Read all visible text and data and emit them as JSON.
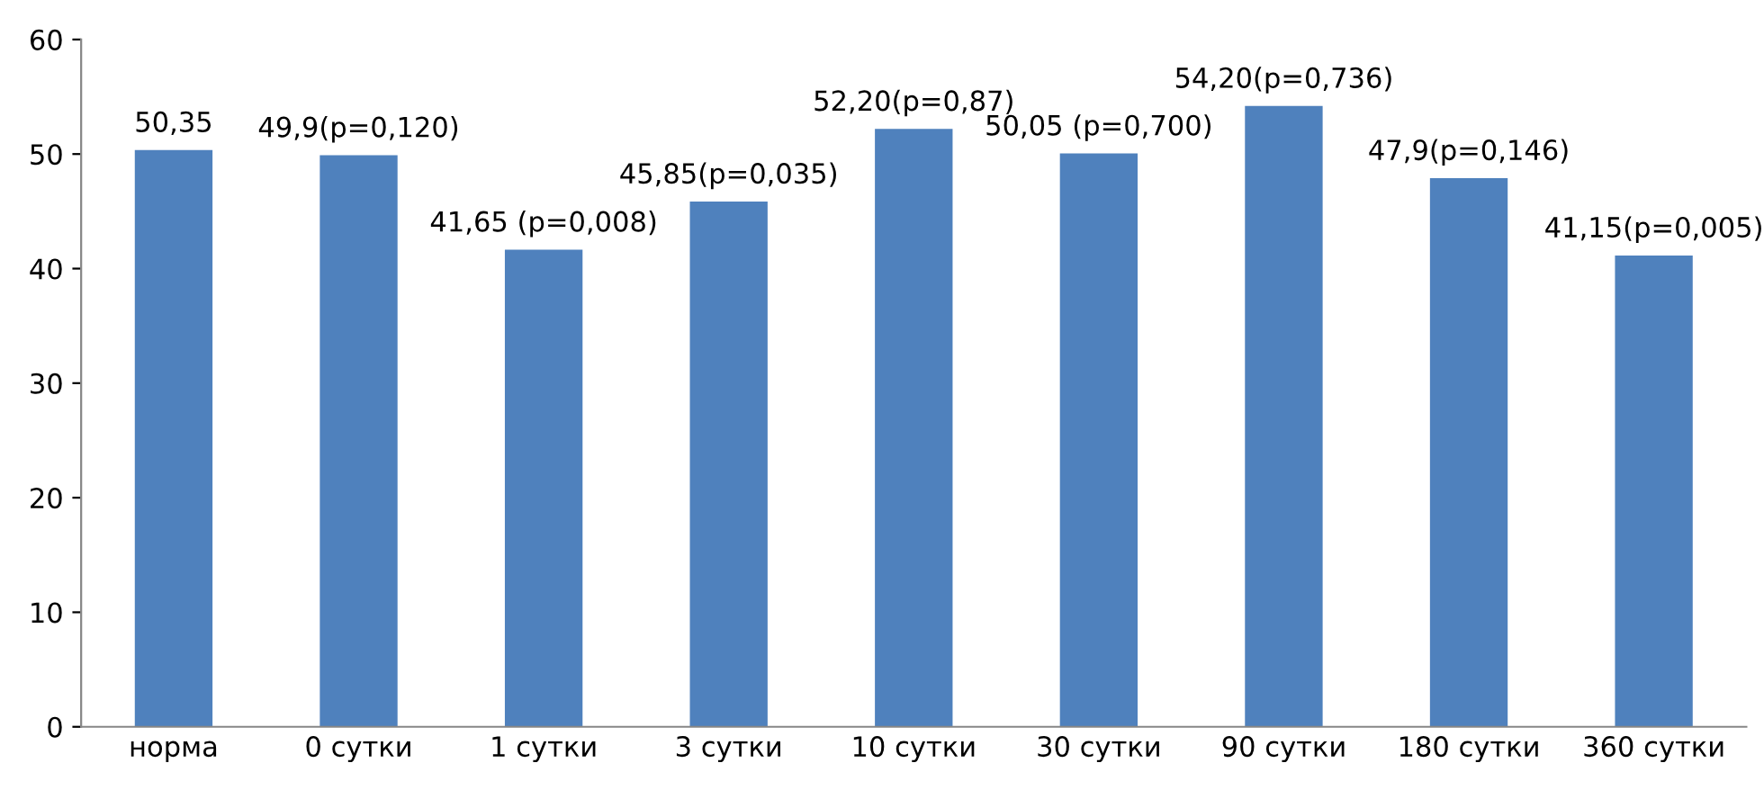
{
  "chart_data": {
    "type": "bar",
    "categories": [
      "норма",
      "0 сутки",
      "1 сутки",
      "3 сутки",
      "10 сутки",
      "30 сутки",
      "90 сутки",
      "180 сутки",
      "360 сутки"
    ],
    "values": [
      50.35,
      49.9,
      41.65,
      45.85,
      52.2,
      50.05,
      54.2,
      47.9,
      41.15
    ],
    "value_labels": [
      "50,35",
      "49,9(p=0,120)",
      "41,65 (p=0,008)",
      "45,85(p=0,035)",
      "52,20(p=0,87)",
      "50,05 (p=0,700)",
      "54,20(p=0,736)",
      "47,9(p=0,146)",
      "41,15(p=0,005)"
    ],
    "color": "#4f81bd",
    "ylim": [
      0,
      60
    ],
    "yticks": [
      0,
      10,
      20,
      30,
      40,
      50,
      60
    ],
    "grid": false,
    "legend": false
  }
}
